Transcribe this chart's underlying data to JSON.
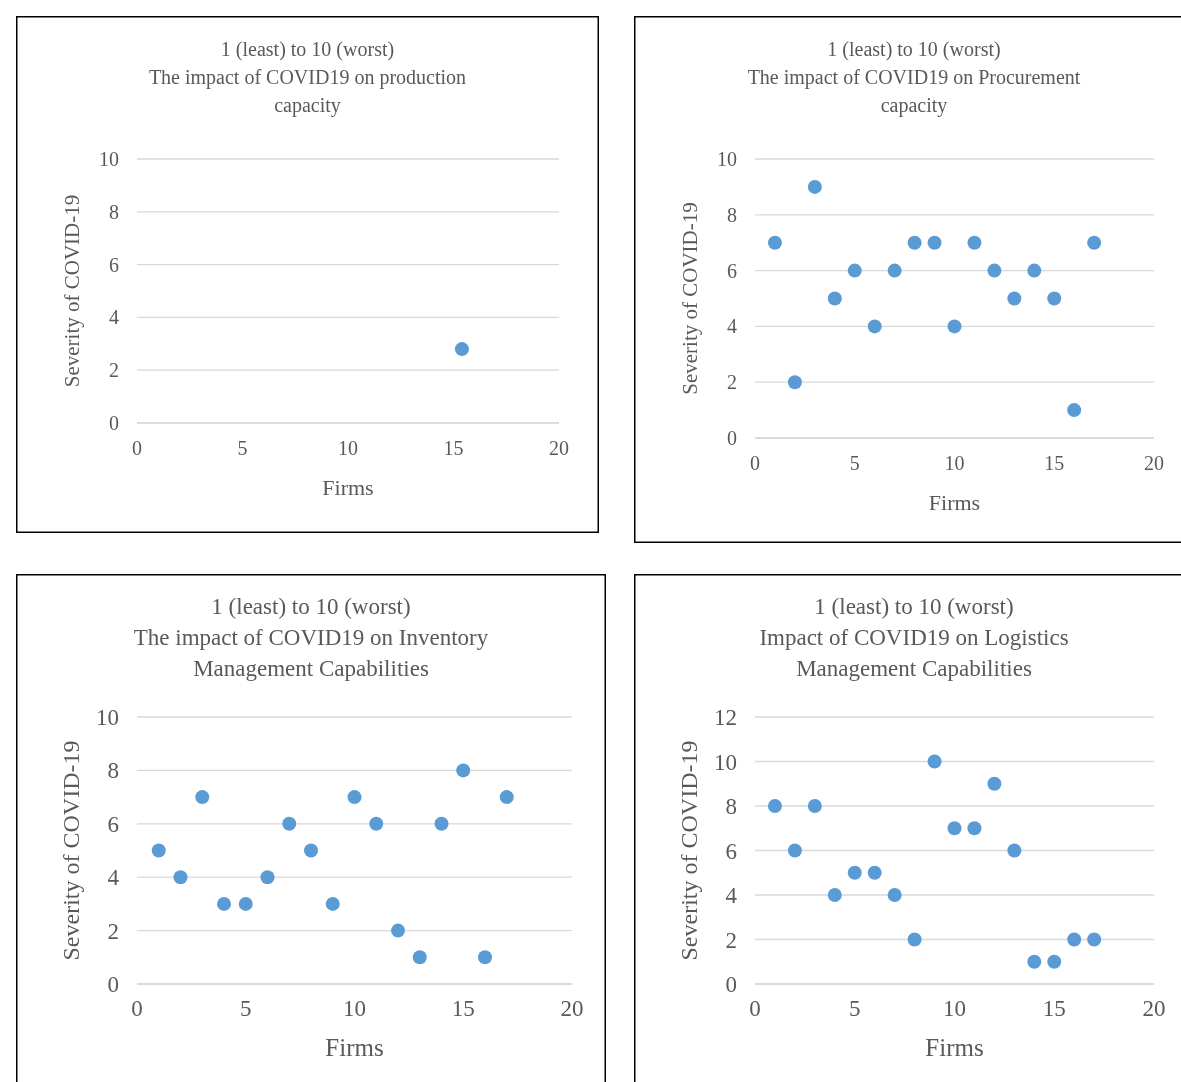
{
  "chart_data": [
    {
      "type": "scatter",
      "title": "1 (least) to 10 (worst)\nThe impact of COVID19 on production capacity",
      "xlabel": "Firms",
      "ylabel": "Severity of COVID-19",
      "xlim": [
        0,
        20
      ],
      "xticks": [
        0,
        5,
        10,
        15,
        20
      ],
      "ylim": [
        0,
        10
      ],
      "yticks": [
        0,
        2,
        4,
        6,
        8,
        10
      ],
      "grid": "y",
      "marker": "circle",
      "series": [
        {
          "color": "#5b9bd5",
          "x": [
            15.4
          ],
          "values": [
            2.8
          ]
        }
      ]
    },
    {
      "type": "scatter",
      "title": "1 (least) to 10 (worst)\nThe impact of COVID19 on Procurement capacity",
      "xlabel": "Firms",
      "ylabel": "Severity of COVID-19",
      "xlim": [
        0,
        20
      ],
      "xticks": [
        0,
        5,
        10,
        15,
        20
      ],
      "ylim": [
        0,
        10
      ],
      "yticks": [
        0,
        2,
        4,
        6,
        8,
        10
      ],
      "grid": "y",
      "marker": "circle",
      "series": [
        {
          "color": "#5b9bd5",
          "x": [
            1,
            2,
            3,
            4,
            5,
            6,
            7,
            8,
            9,
            10,
            11,
            12,
            13,
            14,
            15,
            16,
            17
          ],
          "values": [
            7,
            2,
            9,
            5,
            6,
            4,
            6,
            7,
            7,
            4,
            7,
            6,
            5,
            6,
            5,
            1,
            7
          ]
        }
      ]
    },
    {
      "type": "scatter",
      "title": "1 (least) to 10 (worst)\nThe impact of COVID19 on Inventory Management Capabilities",
      "xlabel": "Firms",
      "ylabel": "Severity of COVID-19",
      "xlim": [
        0,
        20
      ],
      "xticks": [
        0,
        5,
        10,
        15,
        20
      ],
      "ylim": [
        0,
        10
      ],
      "yticks": [
        0,
        2,
        4,
        6,
        8,
        10
      ],
      "grid": "y",
      "marker": "circle",
      "series": [
        {
          "color": "#5b9bd5",
          "x": [
            1,
            2,
            3,
            4,
            5,
            6,
            7,
            8,
            9,
            10,
            11,
            12,
            13,
            14,
            15,
            16,
            17
          ],
          "values": [
            5,
            4,
            7,
            3,
            3,
            4,
            6,
            5,
            3,
            7,
            6,
            2,
            1,
            6,
            8,
            1,
            7
          ]
        }
      ]
    },
    {
      "type": "scatter",
      "title": "1 (least) to 10 (worst)\nImpact of COVID19 on Logistics Management Capabilities",
      "xlabel": "Firms",
      "ylabel": "Severity of COVID-19",
      "xlim": [
        0,
        20
      ],
      "xticks": [
        0,
        5,
        10,
        15,
        20
      ],
      "ylim": [
        0,
        12
      ],
      "yticks": [
        0,
        2,
        4,
        6,
        8,
        10,
        12
      ],
      "grid": "y",
      "marker": "circle",
      "series": [
        {
          "color": "#5b9bd5",
          "x": [
            1,
            2,
            3,
            4,
            5,
            6,
            7,
            8,
            9,
            10,
            11,
            12,
            13,
            14,
            15,
            16,
            17
          ],
          "values": [
            8,
            6,
            8,
            4,
            5,
            5,
            4,
            2,
            10,
            7,
            7,
            9,
            6,
            1,
            1,
            2,
            2
          ]
        }
      ]
    }
  ]
}
